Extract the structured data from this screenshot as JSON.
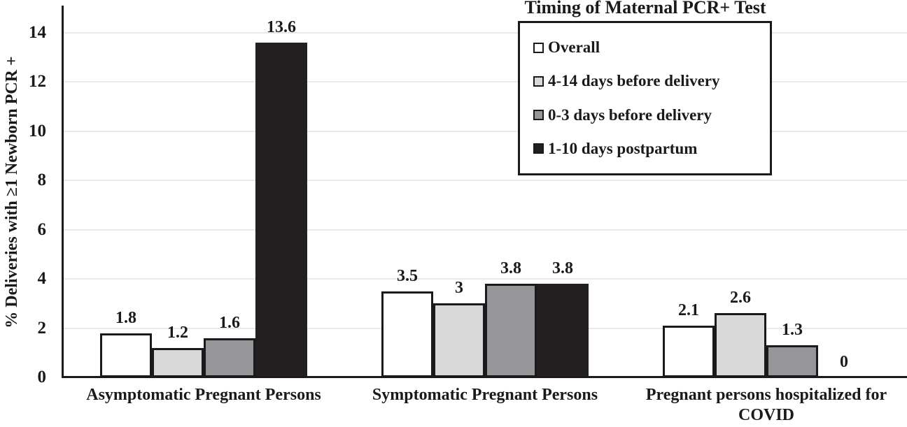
{
  "chart_data": {
    "type": "bar",
    "title": "",
    "xlabel": "",
    "ylabel": "% Deliveries with ≥1 Newborn PCR +",
    "ylim": [
      0,
      14
    ],
    "ytick_step": 2,
    "yticks": [
      "0",
      "2",
      "4",
      "6",
      "8",
      "10",
      "12",
      "14"
    ],
    "grid": true,
    "gridline_color": "#e9e9e9",
    "axis_color": "#1a1a1a",
    "legend_title": "Timing of Maternal PCR+ Test",
    "legend_position": "top-right",
    "categories": [
      "Asymptomatic Pregnant Persons",
      "Symptomatic Pregnant Persons",
      "Pregnant persons hospitalized for COVID"
    ],
    "series": [
      {
        "name": "Overall",
        "color": "#ffffff",
        "values": [
          1.8,
          3.5,
          2.1
        ],
        "labels": [
          "1.8",
          "3.5",
          "2.1"
        ]
      },
      {
        "name": "4-14 days before delivery",
        "color": "#d9d9d9",
        "values": [
          1.2,
          3,
          2.6
        ],
        "labels": [
          "1.2",
          "3",
          "2.6"
        ]
      },
      {
        "name": "0-3 days before delivery",
        "color": "#96969a",
        "values": [
          1.6,
          3.8,
          1.3
        ],
        "labels": [
          "1.6",
          "3.8",
          "1.3"
        ]
      },
      {
        "name": "1-10 days postpartum",
        "color": "#231f20",
        "values": [
          13.6,
          3.8,
          0
        ],
        "labels": [
          "13.6",
          "3.8",
          "0"
        ]
      }
    ]
  }
}
